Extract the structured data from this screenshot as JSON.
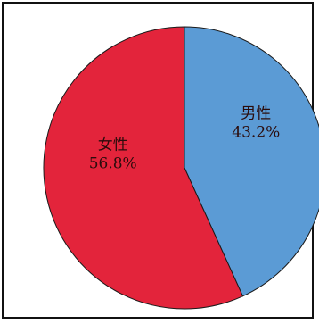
{
  "chart_data": {
    "type": "pie",
    "title": "",
    "slices": [
      {
        "name": "男性",
        "value": 43.2,
        "value_label": "43.2%",
        "color": "#5b9bd5"
      },
      {
        "name": "女性",
        "value": 56.8,
        "value_label": "56.8%",
        "color": "#e3243b"
      }
    ],
    "start": "12 o'clock",
    "direction": "clockwise",
    "legend": "none",
    "border": true
  }
}
